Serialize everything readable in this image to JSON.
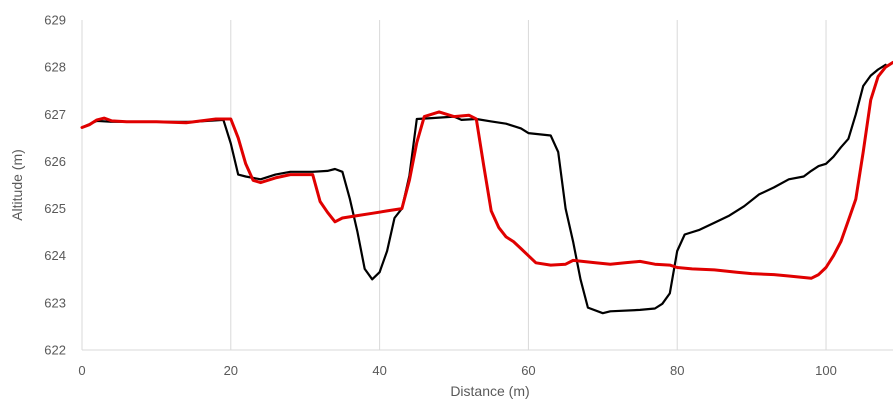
{
  "chart_data": {
    "type": "line",
    "title": "",
    "xlabel": "Distance (m)",
    "ylabel": "Altitude (m)",
    "xlim": [
      0,
      109
    ],
    "ylim": [
      622,
      629
    ],
    "x_ticks": [
      "0",
      "20",
      "40",
      "60",
      "80",
      "100"
    ],
    "y_ticks": [
      "622",
      "623",
      "624",
      "625",
      "626",
      "627",
      "628",
      "629"
    ],
    "grid": "vertical",
    "legend": "none",
    "series": [
      {
        "color": "#000000",
        "points": [
          [
            0,
            626.72
          ],
          [
            2,
            626.86
          ],
          [
            4,
            626.84
          ],
          [
            10,
            626.84
          ],
          [
            15,
            626.84
          ],
          [
            19,
            626.88
          ],
          [
            20,
            626.38
          ],
          [
            21,
            625.72
          ],
          [
            22,
            625.68
          ],
          [
            24,
            625.62
          ],
          [
            26,
            625.72
          ],
          [
            28,
            625.78
          ],
          [
            31,
            625.78
          ],
          [
            33,
            625.8
          ],
          [
            34,
            625.84
          ],
          [
            35,
            625.78
          ],
          [
            36,
            625.2
          ],
          [
            37,
            624.52
          ],
          [
            38,
            623.72
          ],
          [
            39,
            623.5
          ],
          [
            40,
            623.65
          ],
          [
            41,
            624.1
          ],
          [
            42,
            624.8
          ],
          [
            43,
            625.0
          ],
          [
            44,
            625.7
          ],
          [
            45,
            626.9
          ],
          [
            47,
            626.92
          ],
          [
            50,
            626.95
          ],
          [
            51,
            626.88
          ],
          [
            53,
            626.9
          ],
          [
            55,
            626.85
          ],
          [
            57,
            626.8
          ],
          [
            59,
            626.7
          ],
          [
            60,
            626.6
          ],
          [
            63,
            626.55
          ],
          [
            64,
            626.2
          ],
          [
            65,
            625.0
          ],
          [
            66,
            624.3
          ],
          [
            67,
            623.5
          ],
          [
            68,
            622.9
          ],
          [
            70,
            622.78
          ],
          [
            71,
            622.82
          ],
          [
            75,
            622.85
          ],
          [
            77,
            622.88
          ],
          [
            78,
            622.98
          ],
          [
            79,
            623.2
          ],
          [
            80,
            624.1
          ],
          [
            81,
            624.45
          ],
          [
            83,
            624.55
          ],
          [
            85,
            624.7
          ],
          [
            87,
            624.85
          ],
          [
            89,
            625.05
          ],
          [
            91,
            625.3
          ],
          [
            93,
            625.45
          ],
          [
            95,
            625.62
          ],
          [
            97,
            625.68
          ],
          [
            98,
            625.8
          ],
          [
            99,
            625.9
          ],
          [
            100,
            625.95
          ],
          [
            101,
            626.1
          ],
          [
            102,
            626.3
          ],
          [
            103,
            626.48
          ],
          [
            104,
            627.0
          ],
          [
            105,
            627.6
          ],
          [
            106,
            627.82
          ],
          [
            107,
            627.95
          ],
          [
            108,
            628.05
          ]
        ]
      },
      {
        "color": "#e00000",
        "points": [
          [
            0,
            626.72
          ],
          [
            1,
            626.78
          ],
          [
            2,
            626.88
          ],
          [
            3,
            626.92
          ],
          [
            4,
            626.86
          ],
          [
            6,
            626.84
          ],
          [
            10,
            626.84
          ],
          [
            14,
            626.82
          ],
          [
            18,
            626.9
          ],
          [
            20,
            626.9
          ],
          [
            21,
            626.5
          ],
          [
            22,
            625.95
          ],
          [
            23,
            625.6
          ],
          [
            24,
            625.55
          ],
          [
            26,
            625.65
          ],
          [
            28,
            625.72
          ],
          [
            31,
            625.72
          ],
          [
            32,
            625.15
          ],
          [
            33,
            624.92
          ],
          [
            34,
            624.72
          ],
          [
            35,
            624.8
          ],
          [
            37,
            624.85
          ],
          [
            39,
            624.9
          ],
          [
            41,
            624.95
          ],
          [
            43,
            625.0
          ],
          [
            44,
            625.6
          ],
          [
            45,
            626.4
          ],
          [
            46,
            626.95
          ],
          [
            48,
            627.05
          ],
          [
            50,
            626.95
          ],
          [
            52,
            626.98
          ],
          [
            53,
            626.9
          ],
          [
            54,
            625.9
          ],
          [
            55,
            624.95
          ],
          [
            56,
            624.6
          ],
          [
            57,
            624.4
          ],
          [
            58,
            624.3
          ],
          [
            59,
            624.15
          ],
          [
            60,
            624.0
          ],
          [
            61,
            623.85
          ],
          [
            63,
            623.8
          ],
          [
            65,
            623.82
          ],
          [
            66,
            623.9
          ],
          [
            69,
            623.85
          ],
          [
            71,
            623.82
          ],
          [
            73,
            623.85
          ],
          [
            75,
            623.88
          ],
          [
            77,
            623.82
          ],
          [
            79,
            623.8
          ],
          [
            80,
            623.75
          ],
          [
            82,
            623.72
          ],
          [
            85,
            623.7
          ],
          [
            88,
            623.65
          ],
          [
            90,
            623.62
          ],
          [
            93,
            623.6
          ],
          [
            95,
            623.57
          ],
          [
            98,
            623.52
          ],
          [
            99,
            623.6
          ],
          [
            100,
            623.75
          ],
          [
            101,
            624.0
          ],
          [
            102,
            624.3
          ],
          [
            103,
            624.75
          ],
          [
            104,
            625.2
          ],
          [
            105,
            626.2
          ],
          [
            106,
            627.3
          ],
          [
            107,
            627.8
          ],
          [
            108,
            628.0
          ],
          [
            109,
            628.1
          ]
        ]
      }
    ]
  }
}
